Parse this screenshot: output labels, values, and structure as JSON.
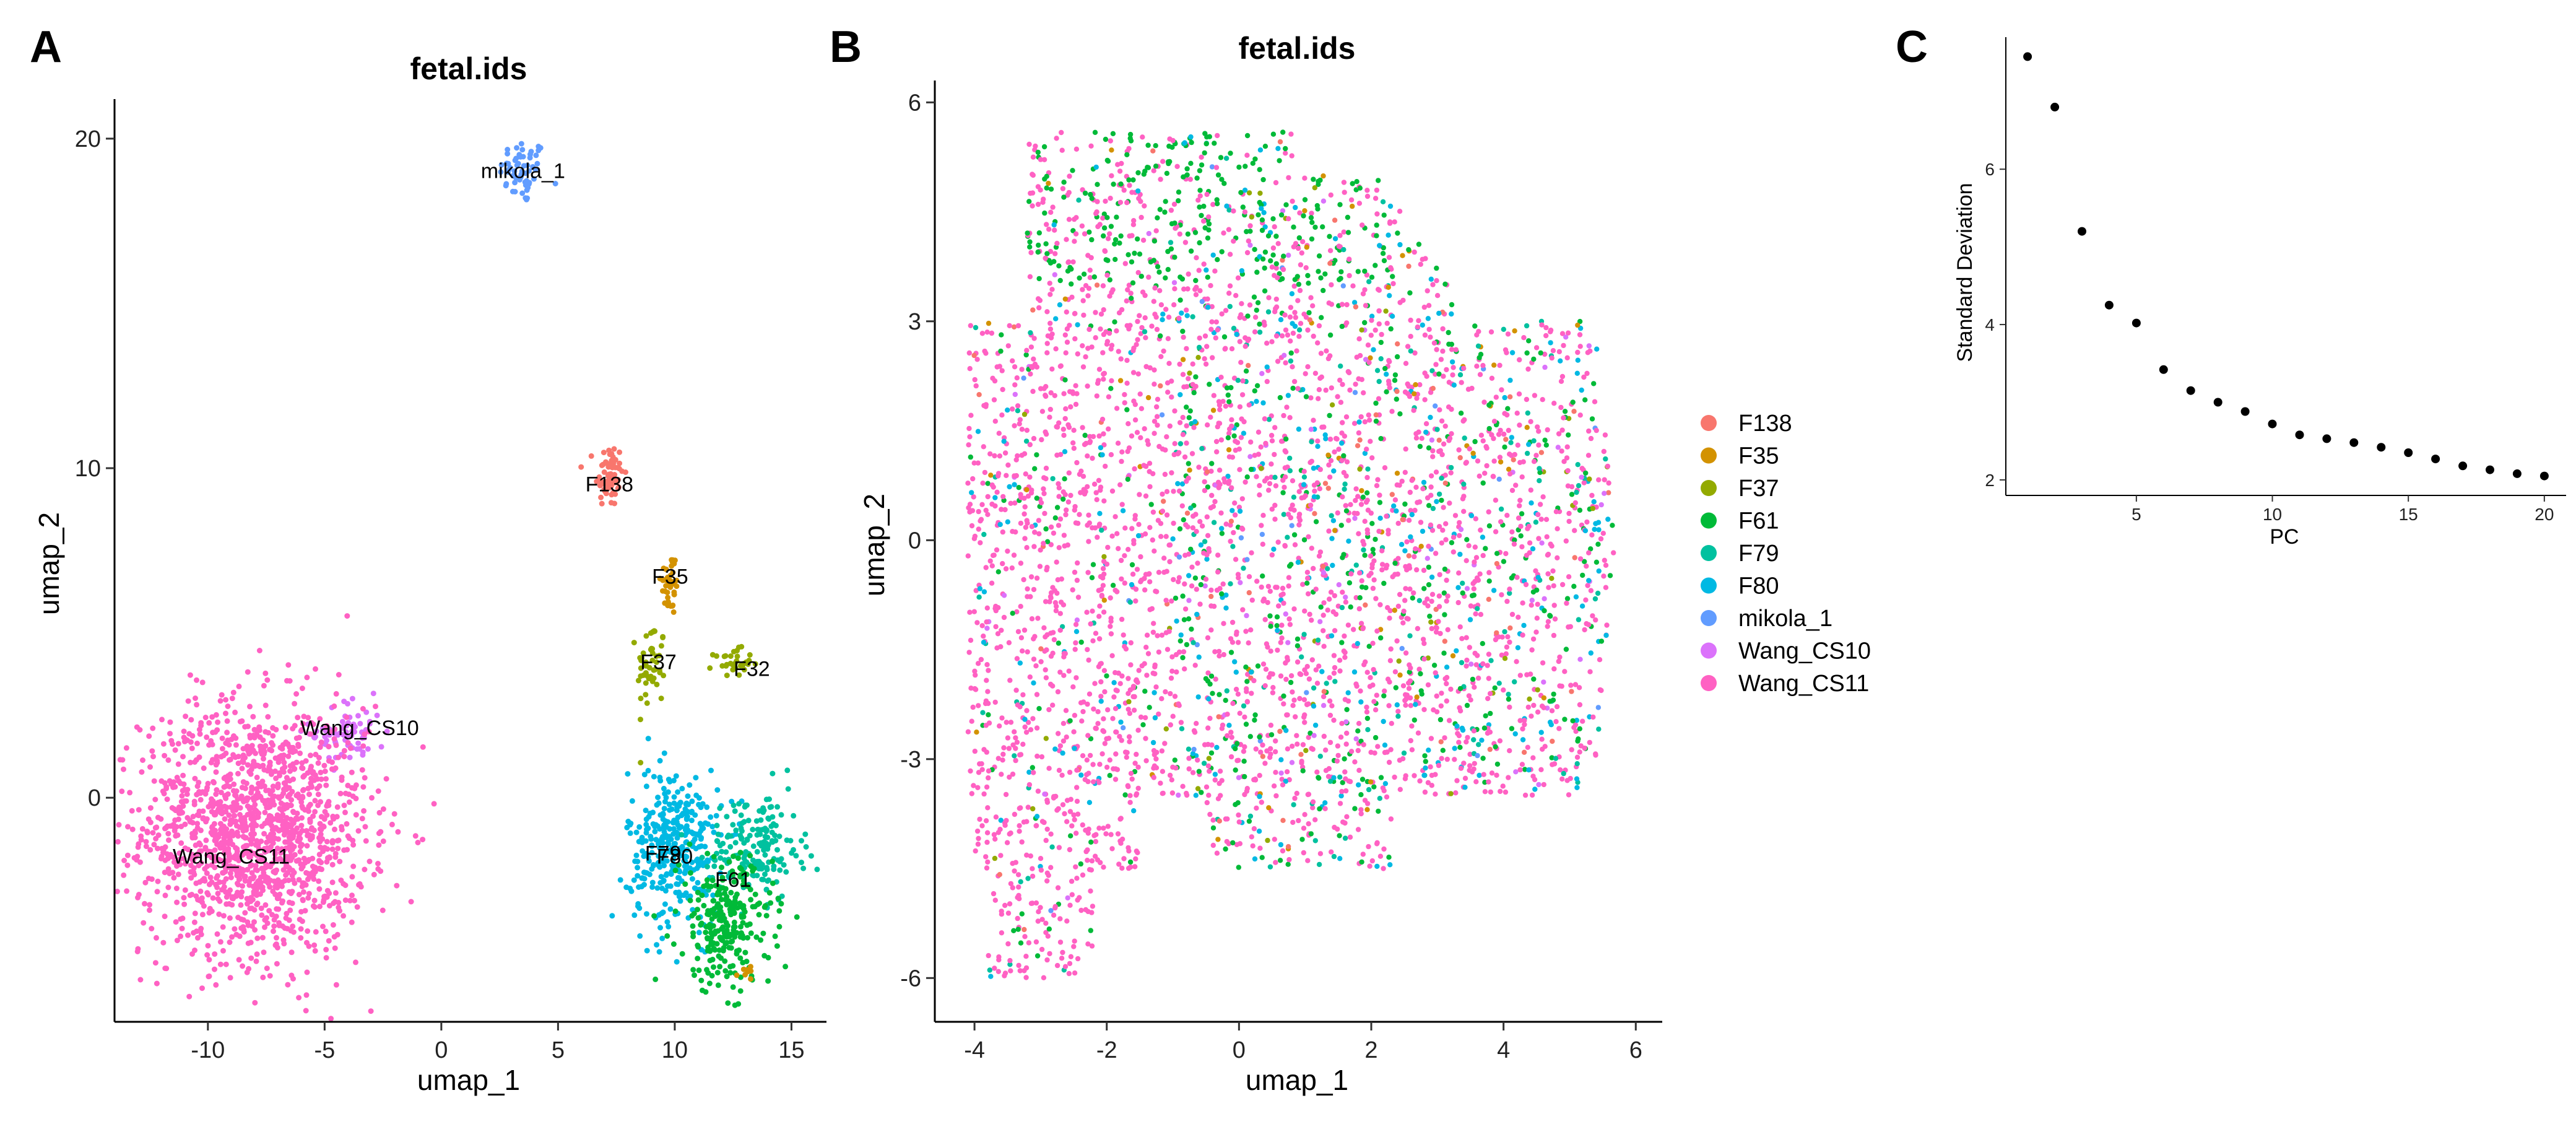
{
  "panel_letters": {
    "a": "A",
    "b": "B",
    "c": "C"
  },
  "legend": {
    "items": [
      {
        "label": "F138",
        "color": "#F8766D"
      },
      {
        "label": "F35",
        "color": "#D39200"
      },
      {
        "label": "F37",
        "color": "#93AA00"
      },
      {
        "label": "F61",
        "color": "#00BA38"
      },
      {
        "label": "F79",
        "color": "#00C19F"
      },
      {
        "label": "F80",
        "color": "#00B9E3"
      },
      {
        "label": "mikola_1",
        "color": "#619CFF"
      },
      {
        "label": "Wang_CS10",
        "color": "#DB72FB"
      },
      {
        "label": "Wang_CS11",
        "color": "#FF61C3"
      }
    ]
  },
  "chart_data": [
    {
      "type": "scatter",
      "title": "fetal.ids",
      "xlabel": "umap_1",
      "ylabel": "umap_2",
      "xlim": [
        -14,
        16.5
      ],
      "ylim": [
        -6.8,
        21.2
      ],
      "x_ticks": [
        -10,
        -5,
        0,
        5,
        10,
        15
      ],
      "y_ticks": [
        0,
        10,
        20
      ],
      "grid": false,
      "clusters": [
        {
          "name": "mikola_1",
          "center": [
            3.5,
            19.0
          ],
          "spread": [
            0.5,
            0.5
          ],
          "n": 60
        },
        {
          "name": "F138",
          "center": [
            7.2,
            9.8
          ],
          "spread": [
            0.3,
            0.5
          ],
          "n": 70
        },
        {
          "name": "F35",
          "center": [
            9.8,
            6.5
          ],
          "spread": [
            0.2,
            0.5
          ],
          "n": 40
        },
        {
          "name": "F37",
          "center": [
            9.0,
            4.0
          ],
          "spread": [
            0.3,
            0.7
          ],
          "n": 50
        },
        {
          "name": "F37",
          "center": [
            12.5,
            4.1
          ],
          "spread": [
            0.4,
            0.2
          ],
          "n": 35
        },
        {
          "name": "Wang_CS10",
          "center": [
            -4.0,
            2.0
          ],
          "spread": [
            0.8,
            0.5
          ],
          "n": 70
        },
        {
          "name": "Wang_CS11",
          "center": [
            -8.0,
            -1.0
          ],
          "spread": [
            2.4,
            1.9
          ],
          "n": 1500
        },
        {
          "name": "F80",
          "center": [
            10.0,
            -1.5
          ],
          "spread": [
            1.0,
            1.2
          ],
          "n": 350
        },
        {
          "name": "F79",
          "center": [
            13.5,
            -1.5
          ],
          "spread": [
            1.0,
            0.8
          ],
          "n": 180
        },
        {
          "name": "F61",
          "center": [
            12.2,
            -3.8
          ],
          "spread": [
            1.0,
            1.0
          ],
          "n": 260
        },
        {
          "name": "F35",
          "center": [
            13.1,
            -5.3
          ],
          "spread": [
            0.2,
            0.1
          ],
          "n": 8
        }
      ],
      "cluster_labels": [
        {
          "text": "mikola_1",
          "x": 3.5,
          "y": 18.8
        },
        {
          "text": "F138",
          "x": 7.2,
          "y": 9.3
        },
        {
          "text": "F35",
          "x": 9.8,
          "y": 6.5
        },
        {
          "text": "F37",
          "x": 9.3,
          "y": 3.9
        },
        {
          "text": "F32",
          "x": 13.3,
          "y": 3.7
        },
        {
          "text": "Wang_CS10",
          "x": -3.5,
          "y": 1.9
        },
        {
          "text": "Wang_CS11",
          "x": -9.0,
          "y": -2.0
        },
        {
          "text": "F79",
          "x": 9.5,
          "y": -1.9
        },
        {
          "text": "F80",
          "x": 10.0,
          "y": -2.0
        },
        {
          "text": "F61",
          "x": 12.5,
          "y": -2.7
        }
      ]
    },
    {
      "type": "scatter",
      "title": "fetal.ids",
      "xlabel": "umap_1",
      "ylabel": "umap_2",
      "xlim": [
        -4.6,
        6.4
      ],
      "ylim": [
        -6.6,
        6.3
      ],
      "x_ticks": [
        -4,
        -2,
        0,
        2,
        4,
        6
      ],
      "y_ticks": [
        -6,
        -3,
        0,
        3,
        6
      ],
      "grid": false,
      "legend_position": "right",
      "n_points": 4200,
      "mix": {
        "Wang_CS11": 0.62,
        "F61": 0.14,
        "F80": 0.1,
        "F79": 0.06,
        "Wang_CS10": 0.02,
        "F138": 0.02,
        "F35": 0.02,
        "F37": 0.01,
        "mikola_1": 0.01
      }
    },
    {
      "type": "scatter",
      "title": "",
      "xlabel": "PC",
      "ylabel": "Standard Deviation",
      "xlim": [
        0.2,
        20.8
      ],
      "ylim": [
        1.8,
        7.7
      ],
      "x_ticks": [
        5,
        10,
        15,
        20
      ],
      "y_ticks": [
        2,
        4,
        6
      ],
      "grid": false,
      "x": [
        1,
        2,
        3,
        4,
        5,
        6,
        7,
        8,
        9,
        10,
        11,
        12,
        13,
        14,
        15,
        16,
        17,
        18,
        19,
        20
      ],
      "y": [
        7.45,
        6.8,
        5.2,
        4.25,
        4.02,
        3.42,
        3.15,
        3.0,
        2.88,
        2.72,
        2.58,
        2.53,
        2.48,
        2.42,
        2.35,
        2.27,
        2.18,
        2.13,
        2.08,
        2.05
      ]
    }
  ]
}
